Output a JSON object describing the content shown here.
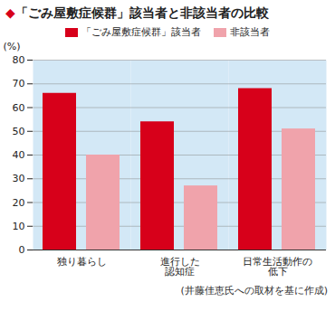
{
  "chart_data": {
    "type": "bar",
    "title": "◆「ごみ屋敷症候群」該当者と非該当者の比較",
    "y_label": "(%)",
    "caption": "(井藤佳恵氏への取材を基に作成)",
    "categories": [
      "独り暮らし",
      "進行した\n認知症",
      "日常生活動作の\n低下"
    ],
    "series": [
      {
        "name": "「ごみ屋敷症候群」該当者",
        "color": "#d7001a",
        "values": [
          66,
          54,
          68
        ]
      },
      {
        "name": "非該当者",
        "color": "#f0a3ab",
        "values": [
          40,
          27,
          51
        ]
      }
    ],
    "ylim": [
      0,
      80
    ],
    "yticks": [
      0,
      10,
      20,
      30,
      40,
      50,
      60,
      70,
      80
    ],
    "grid": true,
    "legend": "top"
  }
}
